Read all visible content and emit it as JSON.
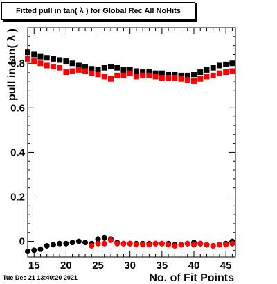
{
  "chart_data": {
    "type": "scatter",
    "title": "Fitted pull in tan( λ ) for Global Rec All NoHits",
    "xlabel": "No. of Fit Points",
    "ylabel": "pull in tan( λ )",
    "xlim": [
      14,
      46.5
    ],
    "ylim": [
      -0.07,
      0.96
    ],
    "xticks": [
      15,
      20,
      25,
      30,
      35,
      40,
      45
    ],
    "yticks": [
      0,
      0.2,
      0.4,
      0.6,
      0.8
    ],
    "ytick_labels": [
      "0",
      "0.2",
      "0.4",
      "0.6",
      "0.8"
    ],
    "grid": false,
    "legend": "none",
    "x": [
      14,
      15,
      16,
      17,
      18,
      19,
      20,
      21,
      22,
      23,
      24,
      25,
      26,
      27,
      28,
      29,
      30,
      31,
      32,
      33,
      34,
      35,
      36,
      37,
      38,
      39,
      40,
      41,
      42,
      43,
      44,
      45,
      46
    ],
    "series": [
      {
        "color": "#000000",
        "marker": "square",
        "values": [
          0.85,
          0.84,
          0.83,
          0.825,
          0.82,
          0.815,
          0.81,
          0.8,
          0.79,
          0.785,
          0.775,
          0.77,
          0.78,
          0.785,
          0.78,
          0.77,
          0.77,
          0.765,
          0.76,
          0.76,
          0.755,
          0.755,
          0.75,
          0.75,
          0.745,
          0.745,
          0.75,
          0.76,
          0.77,
          0.78,
          0.79,
          0.795,
          0.8
        ]
      },
      {
        "color": "#ff0000",
        "marker": "square",
        "values": [
          0.82,
          0.81,
          0.8,
          0.79,
          0.785,
          0.78,
          0.76,
          0.765,
          0.77,
          0.765,
          0.755,
          0.75,
          0.74,
          0.73,
          0.745,
          0.745,
          0.755,
          0.74,
          0.745,
          0.745,
          0.74,
          0.735,
          0.735,
          0.735,
          0.73,
          0.725,
          0.72,
          0.73,
          0.74,
          0.745,
          0.755,
          0.76,
          0.765
        ]
      },
      {
        "color": "#000000",
        "marker": "circle",
        "values": [
          -0.045,
          -0.04,
          -0.035,
          -0.02,
          -0.015,
          -0.01,
          -0.01,
          -0.005,
          0,
          -0.005,
          -0.01,
          0.01,
          0.015,
          0.01,
          -0.005,
          -0.01,
          -0.01,
          -0.01,
          -0.01,
          -0.01,
          -0.01,
          -0.01,
          -0.01,
          -0.015,
          -0.015,
          -0.01,
          -0.005,
          -0.01,
          -0.015,
          -0.02,
          -0.015,
          -0.01,
          0
        ]
      },
      {
        "color": "#ff0000",
        "marker": "circle",
        "x": [
          24,
          25,
          26,
          27,
          28,
          29,
          30,
          31,
          32,
          33,
          34,
          35,
          36,
          37,
          38,
          39,
          40,
          41,
          42,
          43,
          44,
          45,
          46
        ],
        "values": [
          -0.02,
          -0.01,
          -0.01,
          0.005,
          -0.01,
          -0.01,
          -0.01,
          -0.015,
          -0.015,
          -0.015,
          -0.01,
          -0.01,
          -0.015,
          -0.02,
          -0.015,
          -0.01,
          -0.015,
          -0.01,
          -0.015,
          -0.02,
          -0.015,
          -0.015,
          -0.01
        ]
      }
    ]
  },
  "timestamp": "Tue Dec 21 13:40:20 2021"
}
